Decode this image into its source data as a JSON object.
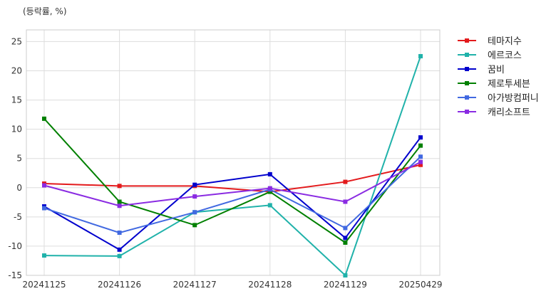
{
  "chart_data": {
    "type": "line",
    "unit_label": "(등락률, %)",
    "categories": [
      "20241125",
      "20241126",
      "20241127",
      "20241128",
      "20241129",
      "20250429"
    ],
    "ylim": [
      -15,
      27
    ],
    "yticks": [
      -15,
      -10,
      -5,
      0,
      5,
      10,
      15,
      20,
      25
    ],
    "grid": true,
    "legend_position": "right",
    "series": [
      {
        "name": "테마지수",
        "color": "#e31a1c",
        "values": [
          0.7,
          0.3,
          0.3,
          -0.7,
          1.0,
          3.9
        ]
      },
      {
        "name": "에르코스",
        "color": "#20b2aa",
        "values": [
          -11.6,
          -11.7,
          -4.2,
          -3.0,
          -15.0,
          22.5
        ]
      },
      {
        "name": "꿈비",
        "color": "#0000cd",
        "values": [
          -3.2,
          -10.6,
          0.5,
          2.3,
          -8.6,
          8.6
        ]
      },
      {
        "name": "제로투세븐",
        "color": "#008000",
        "values": [
          11.8,
          -2.4,
          -6.4,
          -0.7,
          -9.4,
          7.2
        ]
      },
      {
        "name": "아가방컴퍼니",
        "color": "#4169e1",
        "values": [
          -3.5,
          -7.7,
          -4.2,
          -0.3,
          -6.9,
          5.3
        ]
      },
      {
        "name": "캐리소프트",
        "color": "#8a2be2",
        "values": [
          0.4,
          -3.1,
          -1.5,
          -0.1,
          -2.4,
          4.4
        ]
      }
    ]
  }
}
